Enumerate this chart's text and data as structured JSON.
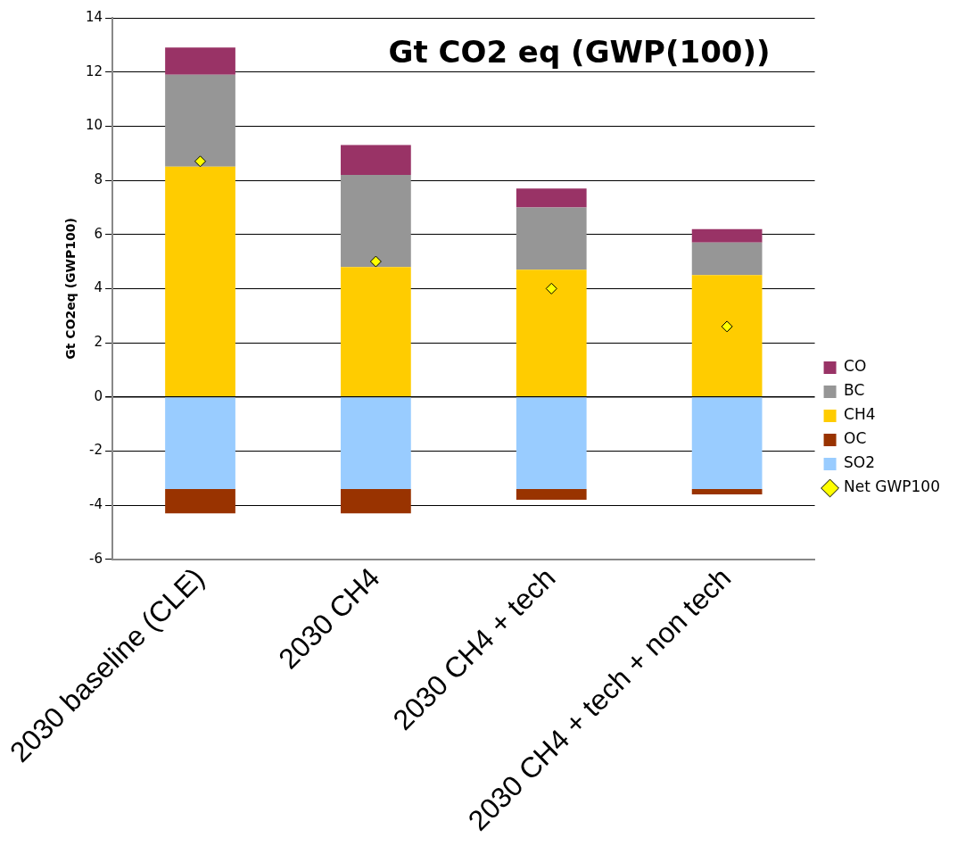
{
  "chart_data": {
    "type": "bar",
    "title": "Gt CO2 eq (GWP(100))",
    "ylabel": "Gt CO2eq (GWP100)",
    "categories": [
      "2030 baseline (CLE)",
      "2030 CH4",
      "2030 CH4 + tech",
      "2030 CH4 + tech + non tech"
    ],
    "stacked": true,
    "ylim": [
      -6,
      14
    ],
    "yticks": [
      -6,
      -4,
      -2,
      0,
      2,
      4,
      6,
      8,
      10,
      12,
      14
    ],
    "grid": "y",
    "legend": "right",
    "series": [
      {
        "name": "SO2",
        "color": "#99ccff",
        "values": [
          -3.4,
          -3.4,
          -3.4,
          -3.4
        ]
      },
      {
        "name": "OC",
        "color": "#993300",
        "values": [
          -0.9,
          -0.9,
          -0.4,
          -0.2
        ]
      },
      {
        "name": "CH4",
        "color": "#ffcc00",
        "values": [
          8.5,
          4.8,
          4.7,
          4.5
        ]
      },
      {
        "name": "BC",
        "color": "#969696",
        "values": [
          3.4,
          3.4,
          2.3,
          1.2
        ]
      },
      {
        "name": "CO",
        "color": "#993366",
        "values": [
          1.0,
          1.1,
          0.7,
          0.5
        ]
      },
      {
        "name": "Net GWP100",
        "type": "scatter",
        "color": "#ffff00",
        "marker": "diamond",
        "x": [
          "2030 baseline (CLE)",
          "2030 CH4",
          "2030 CH4 + tech",
          "2030 CH4 + tech + non tech"
        ],
        "values": [
          8.7,
          5.0,
          4.0,
          2.6
        ]
      }
    ]
  }
}
